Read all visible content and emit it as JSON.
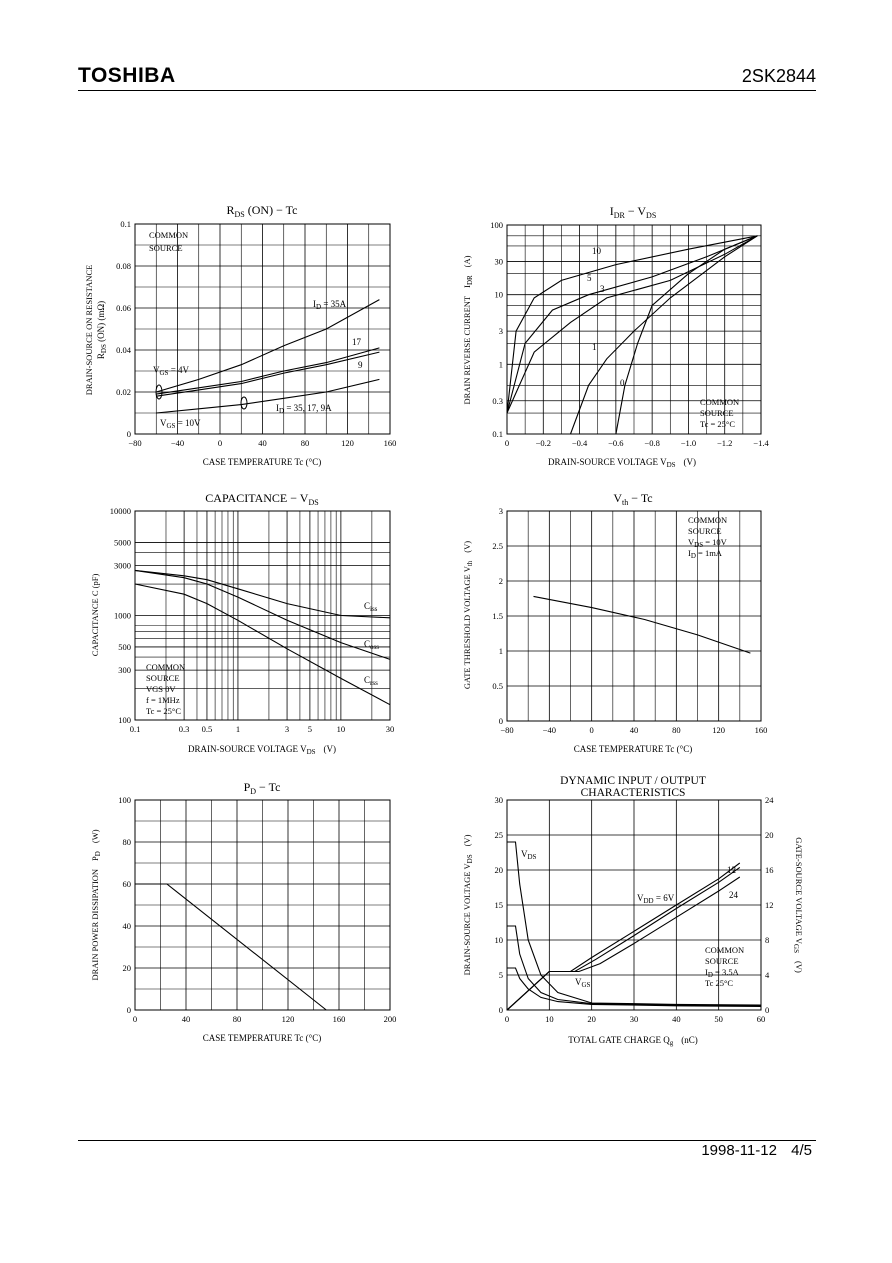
{
  "header": {
    "brand": "TOSHIBA",
    "part_number": "2SK2844"
  },
  "footer": {
    "date": "1998-11-12",
    "page": "4/5"
  },
  "charts": {
    "rds": {
      "title_main": "R",
      "title_sub": "DS",
      "title_rest": " (ON)  −  Tc",
      "ylabel": "DRAIN-SOURCE ON RESISTANCE",
      "ylabel2_main": "R",
      "ylabel2_sub": "DS",
      "ylabel2_rest": " (ON)  (mΩ)",
      "xlabel": "CASE TEMPERATURE    Tc    (°C)",
      "note": [
        "COMMON",
        "SOURCE"
      ],
      "vgs4_main": "V",
      "vgs4_sub": "GS",
      "vgs4_rest": " = 4V",
      "vgs10_main": "V",
      "vgs10_sub": "GS",
      "vgs10_rest": " = 10V",
      "id35_main": "I",
      "id35_sub": "D",
      "id35_rest": " = 35A",
      "id17": "17",
      "id9": "9",
      "idall_main": "I",
      "idall_sub": "D",
      "idall_rest": " = 35, 17, 9A"
    },
    "idr": {
      "title_a": "I",
      "title_a_sub": "DR",
      "title_b": "  −  V",
      "title_b_sub": "DS",
      "ylabel": "DRAIN REVERSE CURRENT",
      "ylabel_sym_main": "I",
      "ylabel_sym_sub": "DR",
      "ylabel_unit": "(A)",
      "xlabel": "DRAIN-SOURCE VOLTAGE    V",
      "xlabel_sub": "DS",
      "xlabel_unit": "(V)",
      "note": [
        "COMMON",
        "SOURCE",
        "Tc = 25°C"
      ],
      "curve_labels": [
        "10",
        "5",
        "3",
        "1",
        "0"
      ]
    },
    "cap": {
      "title_a": "CAPACITANCE  −  V",
      "title_a_sub": "DS",
      "ylabel": "CAPACITANCE    C    (pF)",
      "xlabel": "DRAIN-SOURCE VOLTAGE    V",
      "xlabel_sub": "DS",
      "xlabel_unit": "(V)",
      "note": [
        "COMMON",
        "SOURCE",
        "VGS   0V",
        "f = 1MHz",
        "Tc = 25°C"
      ],
      "ciss_main": "C",
      "ciss_sub": "iss",
      "coss_main": "C",
      "coss_sub": "oss",
      "crss_main": "C",
      "crss_sub": "rss"
    },
    "vth": {
      "title_a": "V",
      "title_a_sub": "th",
      "title_b": "  −  Tc",
      "ylabel": "GATE THRESHOLD VOLTAGE    V",
      "ylabel_sub": "th",
      "ylabel_unit": "(V)",
      "xlabel": "CASE TEMPERATURE    Tc    (°C)",
      "note": [
        "COMMON",
        "SOURCE"
      ],
      "note_vds_main": "V",
      "note_vds_sub": "DS",
      "note_vds_rest": " = 10V",
      "note_id_main": "I",
      "note_id_sub": "D",
      "note_id_rest": " = 1mA"
    },
    "pd": {
      "title_a": "P",
      "title_a_sub": "D",
      "title_b": "  −  Tc",
      "ylabel": "DRAIN POWER DISSIPATION",
      "ylabel_sym": "P",
      "ylabel_sym_sub": "D",
      "ylabel_unit": "(W)",
      "xlabel": "CASE TEMPERATURE    Tc    (°C)"
    },
    "dyn": {
      "title_line1": "DYNAMIC INPUT / OUTPUT",
      "title_line2": "CHARACTERISTICS",
      "ylabel_left": "DRAIN-SOURCE VOLTAGE    V",
      "ylabel_left_sub": "DS",
      "ylabel_left_unit": "(V)",
      "ylabel_right": "GATE-SOURCE VOLTAGE    V",
      "ylabel_right_sub": "GS",
      "ylabel_right_unit": "(V)",
      "xlabel": "TOTAL GATE CHARGE    Q",
      "xlabel_sub": "g",
      "xlabel_unit": "(nC)",
      "vds_main": "V",
      "vds_sub": "DS",
      "vgs_main": "V",
      "vgs_sub": "GS",
      "vdd_main": "V",
      "vdd_sub": "DD",
      "vdd_rest": " = 6V",
      "lbl12": "12",
      "lbl24": "24",
      "note": [
        "COMMON",
        "SOURCE"
      ],
      "note_id_main": "I",
      "note_id_sub": "D",
      "note_id_rest": " = 3.5A",
      "note_tc": "Tc   25°C"
    }
  },
  "chart_data": [
    {
      "type": "line",
      "title": "RDS (ON) − Tc",
      "xlabel": "CASE TEMPERATURE Tc (°C)",
      "ylabel": "DRAIN-SOURCE ON RESISTANCE RDS (ON) (mΩ)",
      "xlim": [
        -80,
        160
      ],
      "ylim": [
        0,
        0.1
      ],
      "xticks": [
        "−80",
        "−40",
        "0",
        "40",
        "80",
        "120",
        "160"
      ],
      "yticks": [
        "0",
        "0.02",
        "0.04",
        "0.06",
        "0.08",
        "0.1"
      ],
      "series": [
        {
          "name": "ID = 35A",
          "x": [
            -60,
            -20,
            20,
            60,
            100,
            150
          ],
          "y": [
            0.02,
            0.026,
            0.033,
            0.042,
            0.05,
            0.064
          ]
        },
        {
          "name": "17",
          "x": [
            -60,
            -20,
            20,
            60,
            100,
            150
          ],
          "y": [
            0.019,
            0.022,
            0.025,
            0.03,
            0.034,
            0.041
          ]
        },
        {
          "name": "9",
          "x": [
            -60,
            -20,
            20,
            60,
            100,
            150
          ],
          "y": [
            0.018,
            0.021,
            0.024,
            0.029,
            0.033,
            0.039
          ]
        },
        {
          "name": "ID = 35, 17, 9A",
          "x": [
            -60,
            -20,
            20,
            60,
            100,
            150
          ],
          "y": [
            0.01,
            0.012,
            0.014,
            0.017,
            0.02,
            0.026
          ]
        }
      ]
    },
    {
      "type": "line",
      "title": "IDR − VDS",
      "xlabel": "DRAIN-SOURCE VOLTAGE VDS (V)",
      "ylabel": "DRAIN REVERSE CURRENT IDR (A)",
      "xlim": [
        0,
        -1.4
      ],
      "ylim": [
        0.1,
        100
      ],
      "yscale": "log",
      "xticks": [
        "0",
        "−0.2",
        "−0.4",
        "−0.6",
        "−0.8",
        "−1.0",
        "−1.2",
        "−1.4"
      ],
      "yticks": [
        "0.1",
        "0.3",
        "1",
        "3",
        "10",
        "30",
        "100"
      ],
      "series": [
        {
          "name": "10",
          "x": [
            0,
            -0.05,
            -0.15,
            -0.3,
            -0.6,
            -1.0,
            -1.38
          ],
          "y": [
            0.2,
            3,
            9,
            16,
            27,
            45,
            70
          ]
        },
        {
          "name": "5",
          "x": [
            0,
            -0.1,
            -0.25,
            -0.45,
            -0.8,
            -1.1,
            -1.38
          ],
          "y": [
            0.2,
            2,
            6,
            10,
            18,
            35,
            70
          ]
        },
        {
          "name": "3",
          "x": [
            0,
            -0.15,
            -0.35,
            -0.55,
            -0.9,
            -1.2,
            -1.38
          ],
          "y": [
            0.2,
            1.5,
            4,
            9,
            16,
            38,
            70
          ]
        },
        {
          "name": "1",
          "x": [
            -0.35,
            -0.45,
            -0.55,
            -0.7,
            -0.9,
            -1.2,
            -1.38
          ],
          "y": [
            0.1,
            0.5,
            1.2,
            3,
            9,
            35,
            70
          ]
        },
        {
          "name": "0",
          "x": [
            -0.6,
            -0.65,
            -0.72,
            -0.8,
            -1.0,
            -1.2,
            -1.38
          ],
          "y": [
            0.1,
            0.5,
            2,
            7,
            20,
            45,
            70
          ]
        }
      ]
    },
    {
      "type": "line",
      "title": "CAPACITANCE − VDS",
      "xlabel": "DRAIN-SOURCE VOLTAGE VDS (V)",
      "ylabel": "CAPACITANCE C (pF)",
      "xlim": [
        0.1,
        30
      ],
      "ylim": [
        100,
        10000
      ],
      "xscale": "log",
      "yscale": "log",
      "xticks": [
        "0.1",
        "0.3",
        "0.5",
        "1",
        "3",
        "5",
        "10",
        "30"
      ],
      "yticks": [
        "100",
        "300",
        "500",
        "1000",
        "3000",
        "5000",
        "10000"
      ],
      "series": [
        {
          "name": "Ciss",
          "x": [
            0.1,
            0.3,
            0.5,
            1,
            3,
            10,
            30
          ],
          "y": [
            2700,
            2400,
            2200,
            1800,
            1300,
            1000,
            950
          ]
        },
        {
          "name": "Coss",
          "x": [
            0.1,
            0.3,
            0.5,
            1,
            3,
            10,
            30
          ],
          "y": [
            2700,
            2300,
            2000,
            1500,
            900,
            550,
            380
          ]
        },
        {
          "name": "Crss",
          "x": [
            0.1,
            0.3,
            0.5,
            1,
            3,
            10,
            30
          ],
          "y": [
            2000,
            1600,
            1300,
            900,
            480,
            250,
            140
          ]
        }
      ]
    },
    {
      "type": "line",
      "title": "Vth − Tc",
      "xlabel": "CASE TEMPERATURE Tc (°C)",
      "ylabel": "GATE THRESHOLD VOLTAGE Vth (V)",
      "xlim": [
        -80,
        160
      ],
      "ylim": [
        0,
        3
      ],
      "xticks": [
        "−80",
        "−40",
        "0",
        "40",
        "80",
        "120",
        "160"
      ],
      "yticks": [
        "0",
        "0.5",
        "1",
        "1.5",
        "2",
        "2.5",
        "3"
      ],
      "series": [
        {
          "name": "Vth",
          "x": [
            -55,
            0,
            50,
            100,
            150
          ],
          "y": [
            1.78,
            1.62,
            1.45,
            1.23,
            0.97
          ]
        }
      ]
    },
    {
      "type": "line",
      "title": "PD − Tc",
      "xlabel": "CASE TEMPERATURE Tc (°C)",
      "ylabel": "DRAIN POWER DISSIPATION PD (W)",
      "xlim": [
        0,
        200
      ],
      "ylim": [
        0,
        100
      ],
      "xticks": [
        "0",
        "40",
        "80",
        "120",
        "160",
        "200"
      ],
      "yticks": [
        "0",
        "20",
        "40",
        "60",
        "80",
        "100"
      ],
      "series": [
        {
          "name": "PD",
          "x": [
            0,
            25,
            150
          ],
          "y": [
            60,
            60,
            0
          ]
        }
      ]
    },
    {
      "type": "line",
      "title": "DYNAMIC INPUT / OUTPUT CHARACTERISTICS",
      "xlabel": "TOTAL GATE CHARGE Qg (nC)",
      "ylabel": "DRAIN-SOURCE VOLTAGE VDS (V)",
      "ylabel_right": "GATE-SOURCE VOLTAGE VGS (V)",
      "xlim": [
        0,
        60
      ],
      "ylim": [
        0,
        30
      ],
      "ylim_right": [
        0,
        24
      ],
      "xticks": [
        "0",
        "10",
        "20",
        "30",
        "40",
        "50",
        "60"
      ],
      "yticks": [
        "0",
        "5",
        "10",
        "15",
        "20",
        "25",
        "30"
      ],
      "yticks_right": [
        "0",
        "4",
        "8",
        "12",
        "16",
        "20",
        "24"
      ],
      "series": [
        {
          "name": "VDS (VDD = 24V)",
          "x": [
            0,
            2,
            3,
            5,
            8,
            12,
            20,
            40,
            60
          ],
          "y": [
            24,
            24,
            18,
            10,
            5,
            2.5,
            1,
            0.8,
            0.7
          ]
        },
        {
          "name": "VDS (VDD = 12V)",
          "x": [
            0,
            2,
            3,
            5,
            8,
            12,
            20,
            40,
            60
          ],
          "y": [
            12,
            12,
            8,
            4.5,
            2.5,
            1.5,
            0.9,
            0.7,
            0.6
          ]
        },
        {
          "name": "VDS (VDD = 6V)",
          "x": [
            0,
            2,
            3,
            5,
            8,
            12,
            20,
            40,
            60
          ],
          "y": [
            6,
            6,
            4.5,
            3,
            1.8,
            1.2,
            0.8,
            0.6,
            0.5
          ]
        },
        {
          "name": "VGS (VDD = 6V)",
          "y_axis": "right",
          "x": [
            0,
            10,
            15,
            20,
            30,
            40,
            50,
            55
          ],
          "y": [
            0,
            4.4,
            4.4,
            6,
            9,
            12,
            15,
            16.8
          ]
        },
        {
          "name": "VGS (VDD = 12V)",
          "y_axis": "right",
          "x": [
            0,
            10,
            16,
            21,
            30,
            40,
            50,
            55
          ],
          "y": [
            0,
            4.4,
            4.4,
            5.8,
            8.5,
            11.6,
            14.6,
            16.3
          ]
        },
        {
          "name": "VGS (VDD = 24V)",
          "y_axis": "right",
          "x": [
            0,
            10,
            17,
            22,
            30,
            40,
            50,
            55
          ],
          "y": [
            0,
            4.4,
            4.4,
            5.3,
            7.6,
            10.6,
            13.6,
            15.2
          ]
        }
      ]
    }
  ]
}
